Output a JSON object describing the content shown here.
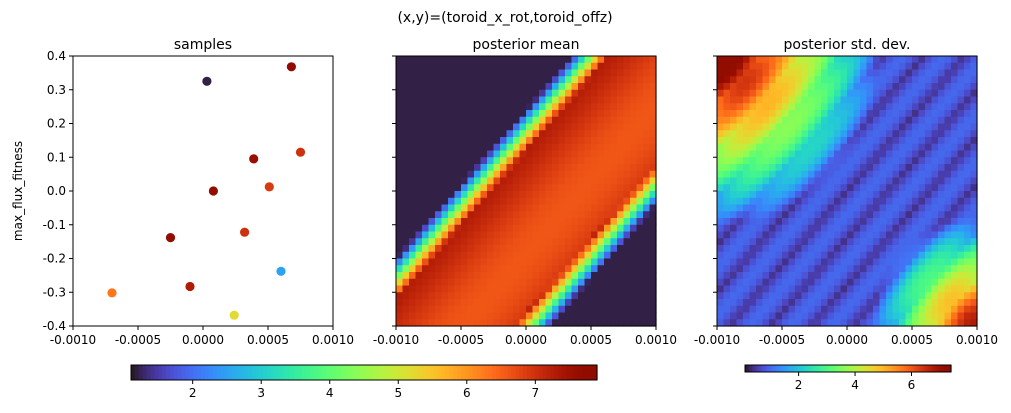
{
  "chart_data": {
    "suptitle": "(x,y)=(toroid_x_rot,toroid_offz)",
    "ylabel": "max_flux_fitness",
    "xlim": [
      -0.001,
      0.001
    ],
    "ylim": [
      -0.4,
      0.4
    ],
    "xticks": [
      "-0.0010",
      "-0.0005",
      "0.0000",
      "0.0005",
      "0.0010"
    ],
    "yticks": [
      "0.4",
      "0.3",
      "0.2",
      "0.1",
      "0.0",
      "-0.1",
      "-0.2",
      "-0.3",
      "-0.4"
    ],
    "colormap": "turbo",
    "panels": [
      {
        "title": "samples",
        "type": "scatter",
        "points": [
          {
            "x": 3e-05,
            "y": 0.325,
            "v": 1.2
          },
          {
            "x": 0.00068,
            "y": 0.368,
            "v": 7.8
          },
          {
            "x": 0.00075,
            "y": 0.115,
            "v": 7.0
          },
          {
            "x": 0.00039,
            "y": 0.095,
            "v": 7.6
          },
          {
            "x": 0.00051,
            "y": 0.012,
            "v": 6.9
          },
          {
            "x": 8e-05,
            "y": 0.0,
            "v": 7.9
          },
          {
            "x": -0.00025,
            "y": -0.138,
            "v": 7.9
          },
          {
            "x": 0.00032,
            "y": -0.122,
            "v": 7.0
          },
          {
            "x": 0.0006,
            "y": -0.238,
            "v": 2.5
          },
          {
            "x": -0.0001,
            "y": -0.283,
            "v": 7.3
          },
          {
            "x": -0.0007,
            "y": -0.302,
            "v": 6.3
          },
          {
            "x": 0.00024,
            "y": -0.368,
            "v": 5.2
          }
        ]
      },
      {
        "title": "posterior mean",
        "type": "heatmap"
      },
      {
        "title": "posterior std. dev.",
        "type": "heatmap"
      }
    ],
    "colorbars": [
      {
        "vmin": 1.1,
        "vmax": 7.9,
        "ticks": [
          2,
          3,
          4,
          5,
          6,
          7
        ]
      },
      {
        "vmin": 0.1,
        "vmax": 7.4,
        "ticks": [
          2,
          4,
          6
        ]
      }
    ]
  }
}
